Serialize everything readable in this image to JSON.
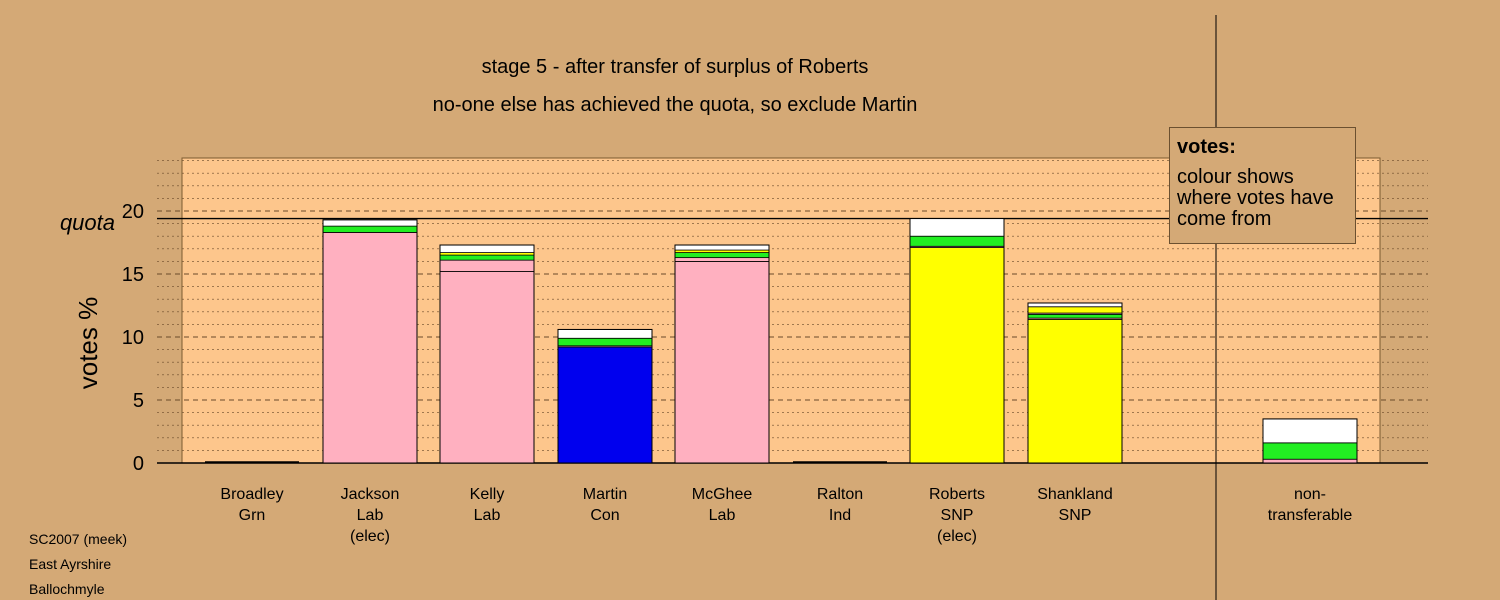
{
  "chart_data": {
    "type": "bar",
    "stacked": true,
    "title": "stage 5 - after transfer of surplus of Roberts",
    "subtitle": "no-one else has achieved the quota, so exclude Martin",
    "ylabel": "votes %",
    "ylim": [
      0,
      24
    ],
    "yticks": [
      0,
      5,
      10,
      15,
      20
    ],
    "quota": 19.4,
    "quota_label": "quota",
    "grid": true,
    "candidates": [
      {
        "name": "Broadley",
        "party": "Grn",
        "status": "",
        "segments": []
      },
      {
        "name": "Jackson",
        "party": "Lab",
        "status": "(elec)",
        "segments": [
          {
            "source": "Lab",
            "color": "#ffb0c0",
            "value": 18.3
          },
          {
            "source": "Grn",
            "color": "#22ee22",
            "value": 0.5
          },
          {
            "source": "other",
            "color": "#ffffff",
            "value": 0.5
          }
        ]
      },
      {
        "name": "Kelly",
        "party": "Lab",
        "status": "",
        "segments": [
          {
            "source": "Lab",
            "color": "#ffb0c0",
            "value": 15.2
          },
          {
            "source": "Lab transfer",
            "color": "#ffb0c0",
            "value": 0.9
          },
          {
            "source": "Grn",
            "color": "#22ee22",
            "value": 0.4
          },
          {
            "source": "SNP",
            "color": "#ffff00",
            "value": 0.2
          },
          {
            "source": "other",
            "color": "#ffffff",
            "value": 0.6
          }
        ]
      },
      {
        "name": "Martin",
        "party": "Con",
        "status": "",
        "segments": [
          {
            "source": "Con",
            "color": "#0000ee",
            "value": 9.2
          },
          {
            "source": "Lab",
            "color": "#ffb0c0",
            "value": 0.1
          },
          {
            "source": "Grn",
            "color": "#22ee22",
            "value": 0.6
          },
          {
            "source": "other",
            "color": "#ffffff",
            "value": 0.7
          }
        ]
      },
      {
        "name": "McGhee",
        "party": "Lab",
        "status": "",
        "segments": [
          {
            "source": "Lab",
            "color": "#ffb0c0",
            "value": 16.0
          },
          {
            "source": "Lab transfer",
            "color": "#ffb0c0",
            "value": 0.3
          },
          {
            "source": "Grn",
            "color": "#22ee22",
            "value": 0.4
          },
          {
            "source": "SNP",
            "color": "#ffff00",
            "value": 0.2
          },
          {
            "source": "other",
            "color": "#ffffff",
            "value": 0.4
          }
        ]
      },
      {
        "name": "Ralton",
        "party": "Ind",
        "status": "",
        "segments": []
      },
      {
        "name": "Roberts",
        "party": "SNP",
        "status": "(elec)",
        "segments": [
          {
            "source": "SNP",
            "color": "#ffff00",
            "value": 17.1
          },
          {
            "source": "Lab",
            "color": "#ffb0c0",
            "value": 0.1
          },
          {
            "source": "Grn",
            "color": "#22ee22",
            "value": 0.8
          },
          {
            "source": "other",
            "color": "#ffffff",
            "value": 1.4
          }
        ]
      },
      {
        "name": "Shankland",
        "party": "SNP",
        "status": "",
        "segments": [
          {
            "source": "SNP",
            "color": "#ffff00",
            "value": 11.4
          },
          {
            "source": "Lab",
            "color": "#ffb0c0",
            "value": 0.1
          },
          {
            "source": "Grn",
            "color": "#22ee22",
            "value": 0.3
          },
          {
            "source": "Lab transfer",
            "color": "#ffb0c0",
            "value": 0.1
          },
          {
            "source": "SNP transfer",
            "color": "#ffff00",
            "value": 0.5
          },
          {
            "source": "other",
            "color": "#ffffff",
            "value": 0.3
          }
        ]
      },
      {
        "name": "",
        "party": "",
        "status": "",
        "segments": []
      },
      {
        "name": "non-",
        "party": "transferable",
        "status": "",
        "segments": [
          {
            "source": "Lab",
            "color": "#ffb0c0",
            "value": 0.3
          },
          {
            "source": "Grn",
            "color": "#22ee22",
            "value": 1.3
          },
          {
            "source": "other",
            "color": "#ffffff",
            "value": 1.9
          }
        ]
      }
    ]
  },
  "legend": {
    "title": "votes:",
    "body": "colour shows where votes have come from"
  },
  "footer": [
    "SC2007 (meek)",
    "East Ayrshire",
    "Ballochmyle"
  ],
  "colors": {
    "background": "#d4a976",
    "plot_area": "#fdc68c"
  }
}
